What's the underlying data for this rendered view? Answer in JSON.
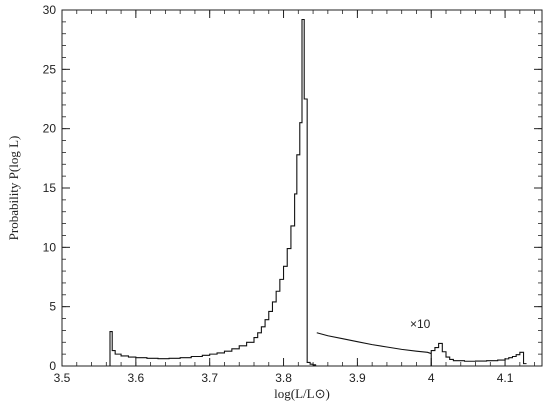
{
  "chart_data": {
    "type": "line",
    "xlabel": "log(L/L⊙)",
    "ylabel": "Probability  P(log L)",
    "xlim": [
      3.5,
      4.15
    ],
    "ylim": [
      0,
      30
    ],
    "xticks": [
      3.5,
      3.6,
      3.7,
      3.8,
      3.9,
      4,
      4.1
    ],
    "xtick_labels": [
      "3.5",
      "3.6",
      "3.7",
      "3.8",
      "3.9",
      "4",
      "4.1"
    ],
    "yticks": [
      0,
      5,
      10,
      15,
      20,
      25,
      30
    ],
    "ytick_labels": [
      "0",
      "5",
      "10",
      "15",
      "20",
      "25",
      "30"
    ],
    "grid": false,
    "legend": "none",
    "annotations": [
      {
        "text": "×10",
        "x": 3.985,
        "y": 3.2
      }
    ],
    "series": [
      {
        "style": "step",
        "x": [
          3.565,
          3.568,
          3.572,
          3.58,
          3.59,
          3.6,
          3.615,
          3.63,
          3.645,
          3.66,
          3.675,
          3.69,
          3.7,
          3.71,
          3.72,
          3.73,
          3.74,
          3.75,
          3.76,
          3.765,
          3.77,
          3.775,
          3.78,
          3.785,
          3.79,
          3.795,
          3.8,
          3.805,
          3.81,
          3.815,
          3.818,
          3.822,
          3.825,
          3.828,
          3.832,
          3.836,
          3.84
        ],
        "y": [
          2.9,
          1.3,
          1.0,
          0.85,
          0.75,
          0.7,
          0.65,
          0.62,
          0.65,
          0.7,
          0.8,
          0.9,
          1.0,
          1.1,
          1.25,
          1.45,
          1.7,
          2.0,
          2.4,
          2.8,
          3.3,
          3.9,
          4.6,
          5.4,
          6.3,
          7.3,
          8.4,
          9.9,
          11.8,
          14.5,
          17.8,
          20.5,
          29.2,
          22.5,
          0.3,
          0.15,
          0.1
        ]
      },
      {
        "style": "line",
        "x": [
          3.845,
          3.86,
          3.88,
          3.9,
          3.92,
          3.94,
          3.96,
          3.98,
          3.995,
          4.0
        ],
        "y": [
          2.8,
          2.55,
          2.3,
          2.05,
          1.8,
          1.6,
          1.4,
          1.25,
          1.15,
          1.05
        ]
      },
      {
        "style": "step",
        "x": [
          4.0,
          4.005,
          4.01,
          4.015,
          4.02,
          4.025,
          4.03,
          4.045,
          4.06,
          4.075,
          4.09,
          4.1,
          4.105,
          4.11,
          4.115,
          4.12,
          4.125
        ],
        "y": [
          1.3,
          1.55,
          1.9,
          1.2,
          0.75,
          0.55,
          0.45,
          0.4,
          0.42,
          0.45,
          0.5,
          0.6,
          0.7,
          0.8,
          0.95,
          1.15,
          0.2
        ]
      }
    ]
  }
}
